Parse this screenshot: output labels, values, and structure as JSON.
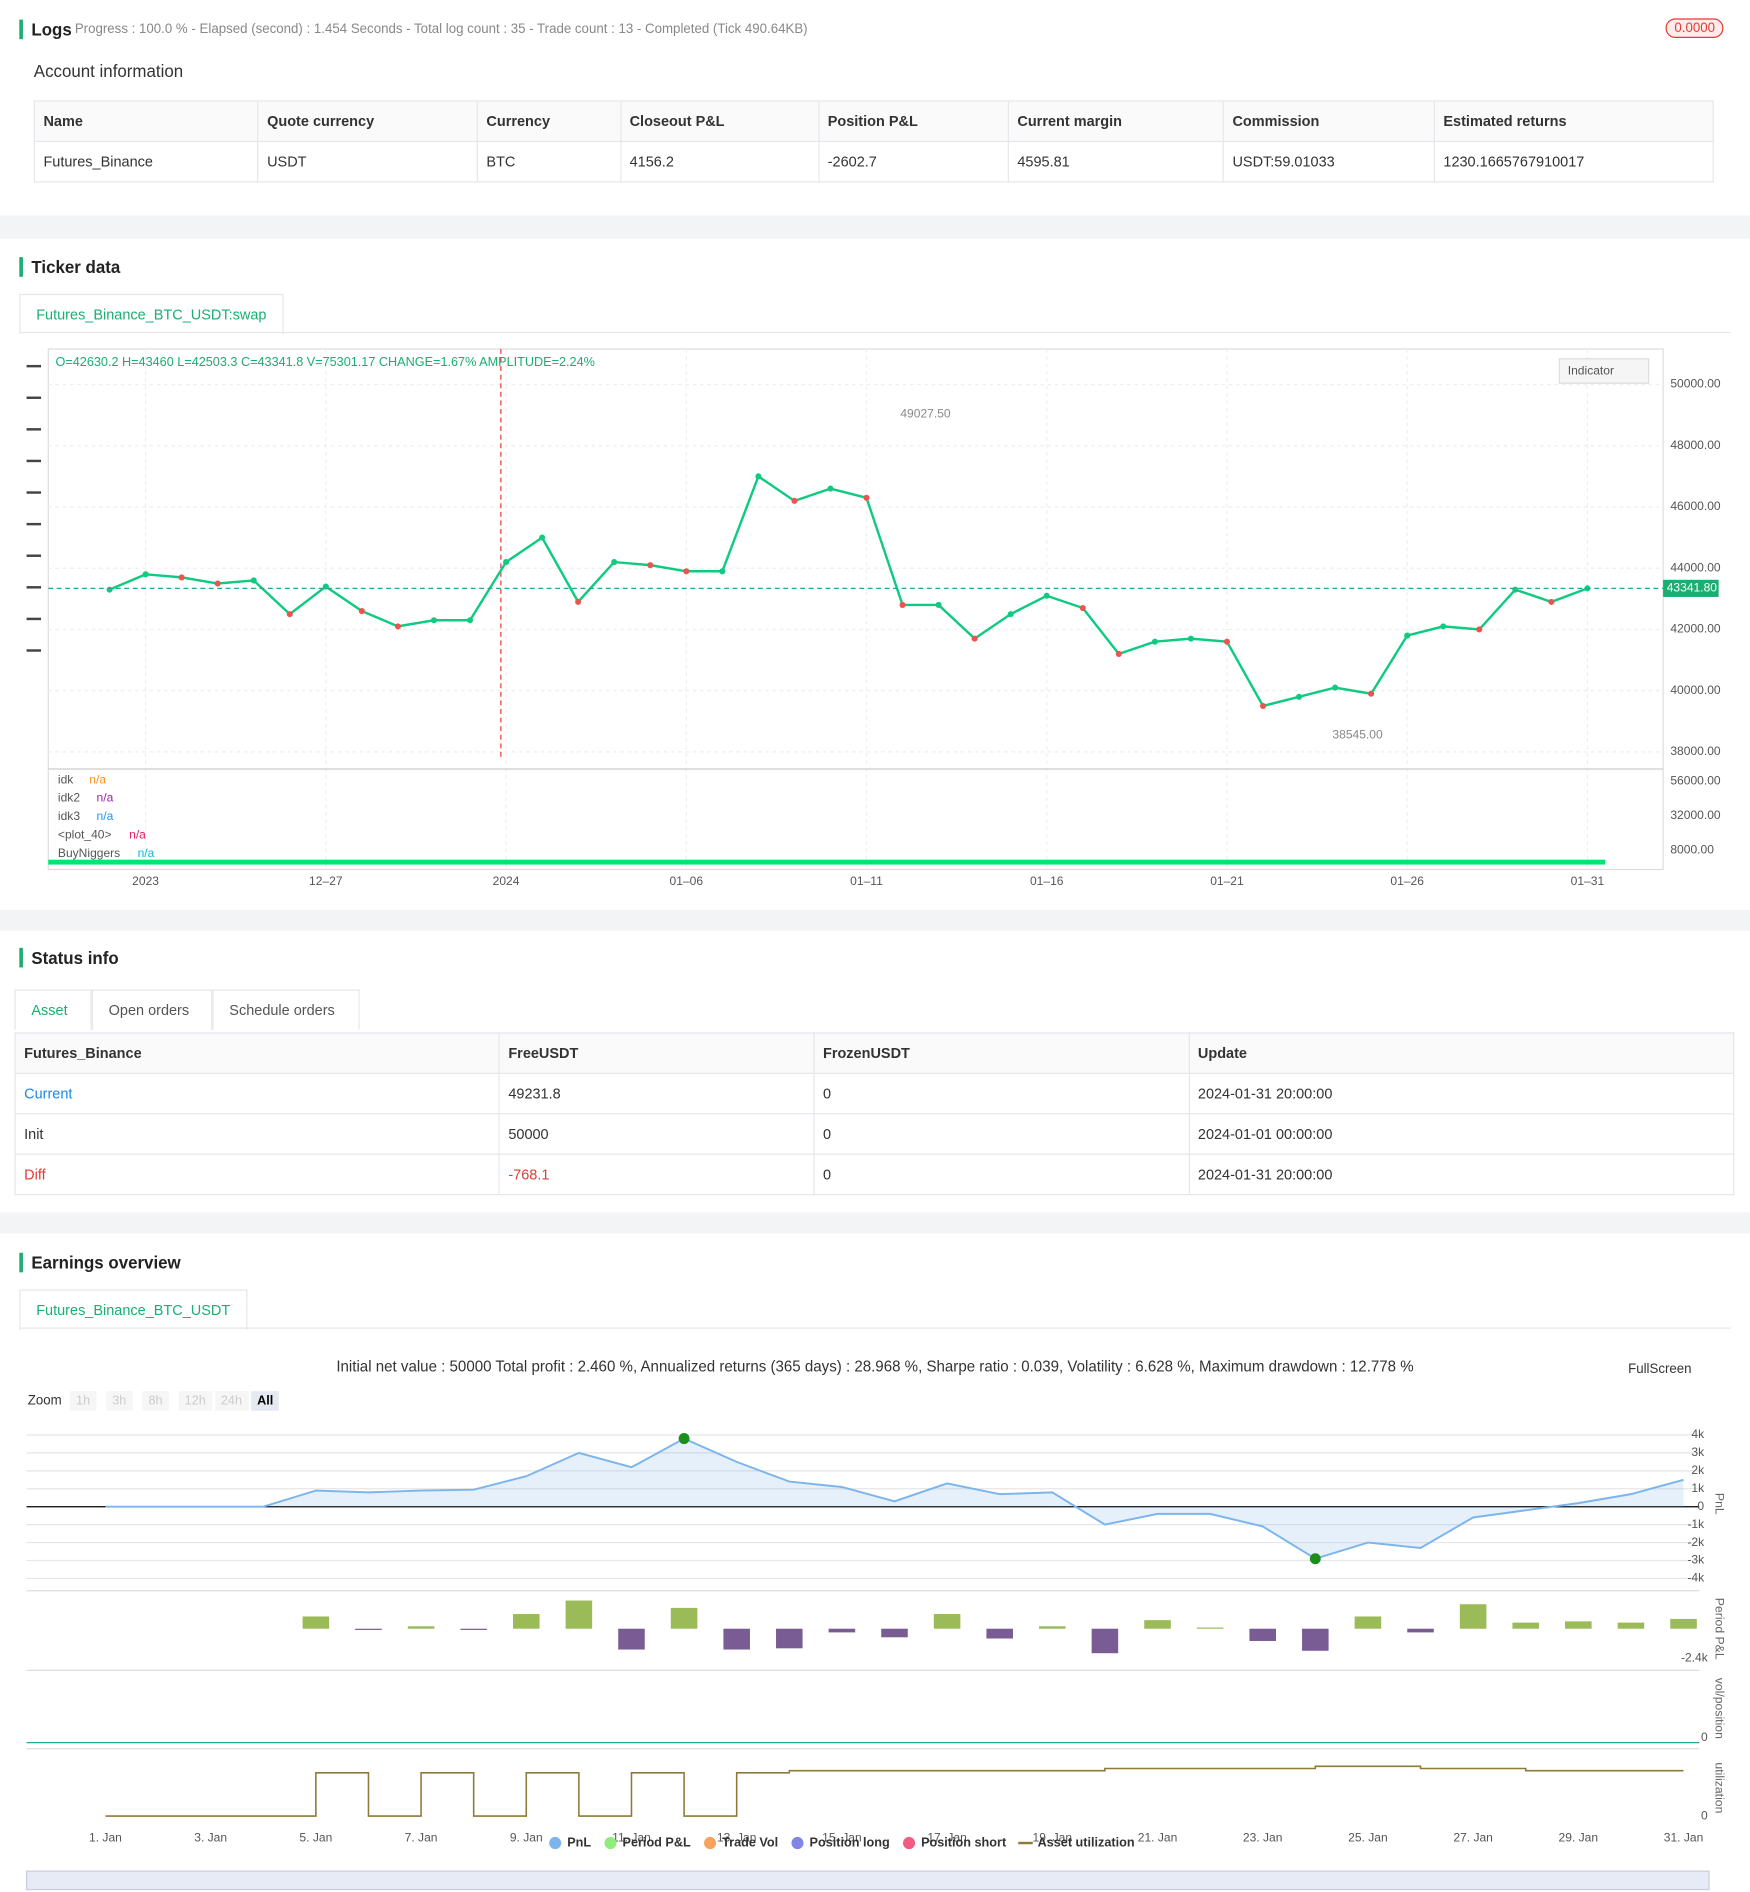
{
  "logs": {
    "title": "Logs",
    "status": "Progress : 100.0 % - Elapsed (second) : 1.454  Seconds - Total log count : 35 - Trade count : 13 - Completed (Tick 490.64KB)",
    "badge": "0.0000"
  },
  "account": {
    "title": "Account information",
    "header": [
      "Name",
      "Quote currency",
      "Currency",
      "Closeout P&L",
      "Position P&L",
      "Current margin",
      "Commission",
      "Estimated returns"
    ],
    "rows": [
      [
        "Futures_Binance",
        "USDT",
        "BTC",
        "4156.2",
        "-2602.7",
        "4595.81",
        "USDT:59.01033",
        "1230.1665767910017"
      ]
    ]
  },
  "ticker": {
    "title": "Ticker data",
    "tab": "Futures_Binance_BTC_USDT:swap",
    "chart_data": {
      "type": "line",
      "info": "O=42630.2 H=43460 L=42503.3 C=43341.8 V=75301.17 CHANGE=1.67% AMPLITUDE=2.24%",
      "button": "Indicator",
      "color": "#0ecb81",
      "x": [
        1,
        2,
        3,
        4,
        5,
        6,
        7,
        8,
        9,
        10,
        11,
        12,
        13,
        14,
        15,
        16,
        17,
        18,
        19,
        20,
        21,
        22,
        23,
        24,
        25,
        26,
        27,
        28,
        29,
        30,
        31,
        32,
        33,
        34,
        35,
        36,
        37,
        38,
        39,
        40,
        41,
        42
      ],
      "values": [
        43300,
        43800,
        43700,
        43500,
        43600,
        42500,
        43400,
        42600,
        42100,
        42300,
        42300,
        44200,
        45000,
        42900,
        44200,
        44100,
        43900,
        43900,
        47000,
        46200,
        46600,
        46300,
        42800,
        42800,
        41700,
        42500,
        43100,
        42700,
        41200,
        41600,
        41700,
        41600,
        39500,
        39800,
        40100,
        39900,
        41800,
        42100,
        42000,
        43300,
        42900,
        43341.8
      ],
      "xlim": [
        -0.7,
        44.1
      ],
      "xticks": [
        {
          "value": 2,
          "label": "2023"
        },
        {
          "value": 7,
          "label": "12–27"
        },
        {
          "value": 12,
          "label": "2024"
        },
        {
          "value": 17,
          "label": "01–06"
        },
        {
          "value": 22,
          "label": "01–11"
        },
        {
          "value": 27,
          "label": "01–16"
        },
        {
          "value": 32,
          "label": "01–21"
        },
        {
          "value": 37,
          "label": "01–26"
        },
        {
          "value": 42,
          "label": "01–31"
        }
      ],
      "ylim": [
        37480,
        51160
      ],
      "yticks": [
        {
          "value": 50000,
          "label": "50000.00"
        },
        {
          "value": 48000,
          "label": "48000.00"
        },
        {
          "value": 46000,
          "label": "46000.00"
        },
        {
          "value": 44000,
          "label": "44000.00"
        },
        {
          "value": 42000,
          "label": "42000.00"
        },
        {
          "value": 40000,
          "label": "40000.00"
        },
        {
          "value": 38000,
          "label": "38000.00"
        }
      ],
      "last_price": {
        "value": 43341.8,
        "label": "43341.80"
      },
      "high": {
        "value": 49027.5,
        "label": "49027.50"
      },
      "low": {
        "value": 38545,
        "label": "38545.00"
      },
      "y2lim": [
        -2000,
        63000
      ],
      "y2ticks": [
        {
          "value": 56000,
          "label": "56000.00"
        },
        {
          "value": 32000,
          "label": "32000.00"
        },
        {
          "value": 8000,
          "label": "8000.00"
        }
      ],
      "indicators": [
        {
          "name": "idk",
          "value": "n/a",
          "color": "#f7931a"
        },
        {
          "name": "idk2",
          "value": "n/a",
          "color": "#9c27b0"
        },
        {
          "name": "idk3",
          "value": "n/a",
          "color": "#2196f3"
        },
        {
          "name": "<plot_40>",
          "value": "n/a",
          "color": "#e91e63"
        },
        {
          "name": "BuyNiggers",
          "value": "n/a",
          "color": "#00bcd4"
        }
      ],
      "grid": true
    }
  },
  "status": {
    "title": "Status info",
    "tabs": [
      "Asset",
      "Open orders",
      "Schedule orders"
    ],
    "header": [
      "Futures_Binance",
      "FreeUSDT",
      "FrozenUSDT",
      "Update"
    ],
    "rows": [
      [
        "Current",
        "49231.8",
        "0",
        "2024-01-31 20:00:00"
      ],
      [
        "Init",
        "50000",
        "0",
        "2024-01-01 00:00:00"
      ],
      [
        "Diff",
        "-768.1",
        "0",
        "2024-01-31 20:00:00"
      ]
    ]
  },
  "earnings": {
    "title": "Earnings overview",
    "tab": "Futures_Binance_BTC_USDT",
    "summary": "Initial net value : 50000 Total profit : 2.460 %, Annualized returns (365 days) : 28.968 %, Sharpe ratio : 0.039, Volatility : 6.628 %, Maximum drawdown : 12.778 %",
    "fullscreen": "FullScreen",
    "zoom_label": "Zoom",
    "zoom": [
      "1h",
      "3h",
      "8h",
      "12h",
      "24h",
      "All"
    ],
    "chart_data": {
      "type": "line",
      "x": [
        1,
        2,
        3,
        4,
        5,
        6,
        7,
        8,
        9,
        10,
        11,
        12,
        13,
        14,
        15,
        16,
        17,
        18,
        19,
        20,
        21,
        22,
        23,
        24,
        25,
        26,
        27,
        28,
        29,
        30,
        31
      ],
      "xlim": [
        -0.5,
        31.3
      ],
      "xticks": [
        {
          "value": 1,
          "label": "1. Jan"
        },
        {
          "value": 3,
          "label": "3. Jan"
        },
        {
          "value": 5,
          "label": "5. Jan"
        },
        {
          "value": 7,
          "label": "7. Jan"
        },
        {
          "value": 9,
          "label": "9. Jan"
        },
        {
          "value": 11,
          "label": "11. Jan"
        },
        {
          "value": 13,
          "label": "13. Jan"
        },
        {
          "value": 15,
          "label": "15. Jan"
        },
        {
          "value": 17,
          "label": "17. Jan"
        },
        {
          "value": 19,
          "label": "19. Jan"
        },
        {
          "value": 21,
          "label": "21. Jan"
        },
        {
          "value": 23,
          "label": "23. Jan"
        },
        {
          "value": 25,
          "label": "25. Jan"
        },
        {
          "value": 27,
          "label": "27. Jan"
        },
        {
          "value": 29,
          "label": "29. Jan"
        },
        {
          "value": 31,
          "label": "31. Jan"
        }
      ],
      "ylim": [
        -4550,
        4600
      ],
      "yticks": [
        {
          "value": 4000,
          "label": "4k"
        },
        {
          "value": 3000,
          "label": "3k"
        },
        {
          "value": 2000,
          "label": "2k"
        },
        {
          "value": 1000,
          "label": "1k"
        },
        0,
        {
          "value": -1000,
          "label": "-1k"
        },
        {
          "value": -2000,
          "label": "-2k"
        },
        {
          "value": -3000,
          "label": "-3k"
        },
        {
          "value": -4000,
          "label": "-4k"
        }
      ],
      "y_label": "PnL",
      "y2_label": "Period P&L",
      "y3_label": "vol/position",
      "y4_label": "utilization",
      "period_ylim": [
        -3000,
        3000
      ],
      "period_yticks": [
        {
          "value": -2400,
          "label": "-2.4k"
        }
      ],
      "util_ylim": [
        0,
        1.5
      ],
      "util_yticks": [
        0
      ],
      "vol_yticks": [
        0
      ],
      "series": [
        {
          "name": "PnL",
          "color": "#7cb5ec",
          "values": [
            0,
            0,
            0,
            0,
            900,
            800,
            900,
            950,
            1700,
            3000,
            2200,
            3800,
            2500,
            1400,
            1100,
            300,
            1300,
            700,
            800,
            -1000,
            -400,
            -400,
            -1100,
            -2900,
            -2000,
            -2300,
            -600,
            -200,
            200,
            700,
            1500
          ]
        },
        {
          "name": "Period P&L",
          "color": "#90ed7d",
          "values": [
            null,
            null,
            null,
            null,
            1000,
            -100,
            200,
            -100,
            1200,
            2300,
            -1700,
            1700,
            -1700,
            -1600,
            -300,
            -700,
            1200,
            -800,
            200,
            -2000,
            700,
            100,
            -1000,
            -1800,
            1000,
            -300,
            2000,
            500,
            600,
            500,
            800
          ]
        },
        {
          "name": "Trade Vol",
          "color": "#f7a35c"
        },
        {
          "name": "Position long",
          "color": "#8085e9"
        },
        {
          "name": "Position short",
          "color": "#f15c80"
        },
        {
          "name": "Asset utilization",
          "color": "#8d7a3a",
          "values": [
            0,
            0,
            0,
            0,
            1,
            0,
            1,
            0,
            1,
            0,
            1,
            0,
            1,
            1.05,
            1.05,
            1.05,
            1.05,
            1.05,
            1.05,
            1.1,
            1.1,
            1.1,
            1.1,
            1.15,
            1.15,
            1.1,
            1.1,
            1.05,
            1.05,
            1.05,
            1.05
          ]
        }
      ]
    }
  }
}
